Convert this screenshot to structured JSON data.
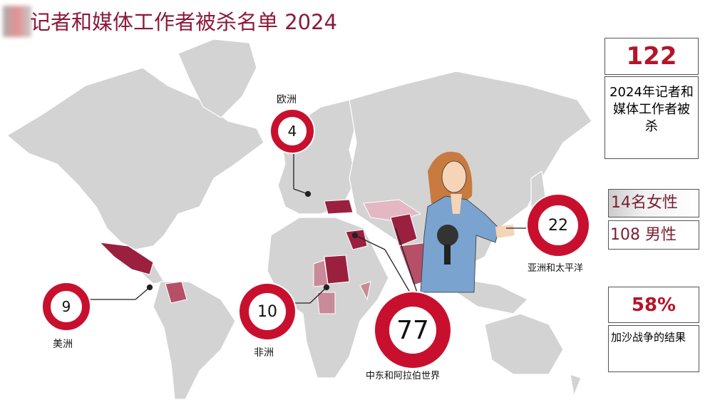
{
  "title": "记者和媒体工作者被杀名单 2024",
  "colors": {
    "ring": "#c8102e",
    "title": "#8b1a3a",
    "highlight_dark": "#9b2040",
    "highlight_light": "#c98a9a",
    "land": "#d3d3d3"
  },
  "regions": [
    {
      "name": "欧洲",
      "count": "4"
    },
    {
      "name": "美洲",
      "count": "9"
    },
    {
      "name": "非洲",
      "count": "10"
    },
    {
      "name": "中东和阿拉伯世界",
      "count": "77"
    },
    {
      "name": "亚洲和太平洋",
      "count": "22"
    }
  ],
  "stats": {
    "total": "122",
    "total_label": "2024年记者和媒体工作者被杀",
    "women": "14名女性",
    "men": "108 男性",
    "gaza_percent": "58%",
    "gaza_label": "加沙战争的结果"
  }
}
